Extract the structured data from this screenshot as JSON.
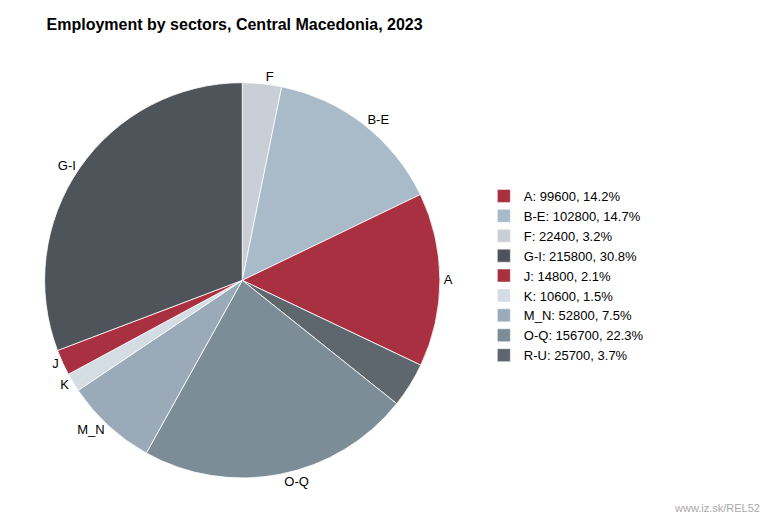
{
  "chart_data": {
    "type": "pie",
    "title": "Employment by sectors, Central Macedonia, 2023",
    "categories": [
      "F",
      "B-E",
      "A",
      null,
      "O-Q",
      "M_N",
      "K",
      "J",
      "G-I"
    ],
    "values": [
      22400,
      102800,
      99600,
      25700,
      156700,
      52800,
      10600,
      14800,
      215800
    ],
    "colors": [
      "#c8cfd6",
      "#a9bac9",
      "#a83040",
      "#5e666e",
      "#7d8d97",
      "#9aaab8",
      "#d4dce4",
      "#a83040",
      "#4e5459"
    ],
    "legend_entries": [
      {
        "name": "A: 99600, 14.2%",
        "color": "#a83040"
      },
      {
        "name": "B-E: 102800, 14.7%",
        "color": "#a9bac9"
      },
      {
        "name": "F: 22400, 3.2%",
        "color": "#c8cfd6"
      },
      {
        "name": "G-I: 215800, 30.8%",
        "color": "#4e5459"
      },
      {
        "name": "J: 14800, 2.1%",
        "color": "#a83040"
      },
      {
        "name": "K: 10600, 1.5%",
        "color": "#d4dce4"
      },
      {
        "name": "M_N: 52800, 7.5%",
        "color": "#9aaab8"
      },
      {
        "name": "O-Q: 156700, 22.3%",
        "color": "#7d8d97"
      },
      {
        "name": "R-U: 25700, 3.7%",
        "color": "#5e666e"
      }
    ],
    "legend": "right",
    "annotations": [
      "www.iz.sk/REL52"
    ]
  }
}
